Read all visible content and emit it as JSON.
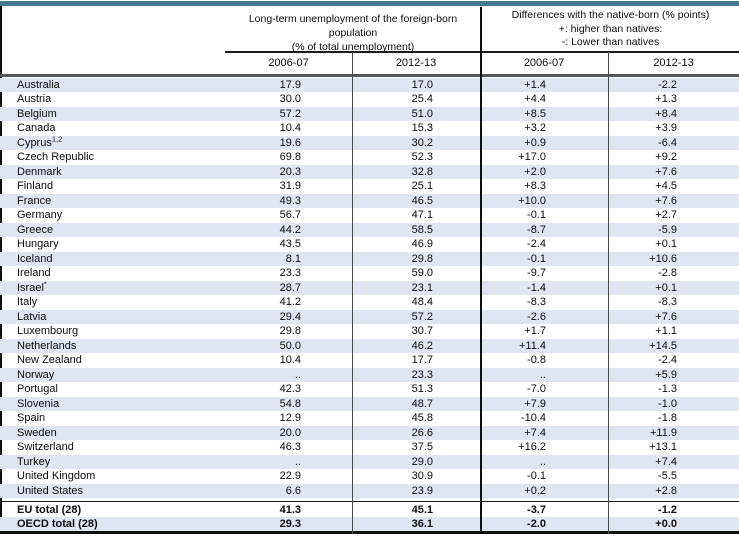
{
  "colors": {
    "accent_bar": "#44798e",
    "row_stripe": "#dfe5f1",
    "header_divider": "#55565a"
  },
  "table": {
    "group_headers": [
      {
        "lines": [
          "Long-term unemployment of the foreign-born population",
          "(% of total unemployment)"
        ]
      },
      {
        "lines": [
          "Differences with the native-born (% points)",
          "+: higher than natives:",
          "-: Lower than natives"
        ]
      }
    ],
    "column_headers": [
      "2006-07",
      "2012-13",
      "2006-07",
      "2012-13"
    ],
    "rows": [
      {
        "country": "Australia",
        "marker": "",
        "values": [
          "17.9",
          "17.0",
          "+1.4",
          "-2.2"
        ]
      },
      {
        "country": "Austria",
        "marker": "",
        "values": [
          "30.0",
          "25.4",
          "+4.4",
          "+1.3"
        ]
      },
      {
        "country": "Belgium",
        "marker": "",
        "values": [
          "57.2",
          "51.0",
          "+8.5",
          "+8.4"
        ]
      },
      {
        "country": "Canada",
        "marker": "",
        "values": [
          "10.4",
          "15.3",
          "+3.2",
          "+3.9"
        ]
      },
      {
        "country": "Cyprus",
        "marker": "1,2",
        "values": [
          "19.6",
          "30.2",
          "+0.9",
          "-6.4"
        ]
      },
      {
        "country": "Czech Republic",
        "marker": "",
        "values": [
          "69.8",
          "52.3",
          "+17.0",
          "+9.2"
        ]
      },
      {
        "country": "Denmark",
        "marker": "",
        "values": [
          "20.3",
          "32.8",
          "+2.0",
          "+7.6"
        ]
      },
      {
        "country": "Finland",
        "marker": "",
        "values": [
          "31.9",
          "25.1",
          "+8.3",
          "+4.5"
        ]
      },
      {
        "country": "France",
        "marker": "",
        "values": [
          "49.3",
          "46.5",
          "+10.0",
          "+7.6"
        ]
      },
      {
        "country": "Germany",
        "marker": "",
        "values": [
          "56.7",
          "47.1",
          "-0.1",
          "+2.7"
        ]
      },
      {
        "country": "Greece",
        "marker": "",
        "values": [
          "44.2",
          "58.5",
          "-8.7",
          "-5.9"
        ]
      },
      {
        "country": "Hungary",
        "marker": "",
        "values": [
          "43.5",
          "46.9",
          "-2.4",
          "+0.1"
        ]
      },
      {
        "country": "Iceland",
        "marker": "",
        "values": [
          "8.1",
          "29.8",
          "-0.1",
          "+10.6"
        ]
      },
      {
        "country": "Ireland",
        "marker": "",
        "values": [
          "23.3",
          "59.0",
          "-9.7",
          "-2.8"
        ]
      },
      {
        "country": "Israel",
        "marker": "*",
        "values": [
          "28.7",
          "23.1",
          "-1.4",
          "+0.1"
        ]
      },
      {
        "country": "Italy",
        "marker": "",
        "values": [
          "41.2",
          "48.4",
          "-8.3",
          "-8.3"
        ]
      },
      {
        "country": "Latvia",
        "marker": "",
        "values": [
          "29.4",
          "57.2",
          "-2.6",
          "+7.6"
        ]
      },
      {
        "country": "Luxembourg",
        "marker": "",
        "values": [
          "29.8",
          "30.7",
          "+1.7",
          "+1.1"
        ]
      },
      {
        "country": "Netherlands",
        "marker": "",
        "values": [
          "50.0",
          "46.2",
          "+11.4",
          "+14.5"
        ]
      },
      {
        "country": "New Zealand",
        "marker": "",
        "values": [
          "10.4",
          "17.7",
          "-0.8",
          "-2.4"
        ]
      },
      {
        "country": "Norway",
        "marker": "",
        "values": [
          "..",
          "23.3",
          "..",
          "+5.9"
        ]
      },
      {
        "country": "Portugal",
        "marker": "",
        "values": [
          "42.3",
          "51.3",
          "-7.0",
          "-1.3"
        ]
      },
      {
        "country": "Slovenia",
        "marker": "",
        "values": [
          "54.8",
          "48.7",
          "+7.9",
          "-1.0"
        ]
      },
      {
        "country": "Spain",
        "marker": "",
        "values": [
          "12.9",
          "45.8",
          "-10.4",
          "-1.8"
        ]
      },
      {
        "country": "Sweden",
        "marker": "",
        "values": [
          "20.0",
          "26.6",
          "+7.4",
          "+11.9"
        ]
      },
      {
        "country": "Switzerland",
        "marker": "",
        "values": [
          "46.3",
          "37.5",
          "+16.2",
          "+13.1"
        ]
      },
      {
        "country": "Turkey",
        "marker": "",
        "values": [
          "..",
          "29.0",
          "..",
          "+7.4"
        ]
      },
      {
        "country": "United Kingdom",
        "marker": "",
        "values": [
          "22.9",
          "30.9",
          "-0.1",
          "-5.5"
        ]
      },
      {
        "country": "United States",
        "marker": "",
        "values": [
          "6.6",
          "23.9",
          "+0.2",
          "+2.8"
        ]
      }
    ],
    "totals": [
      {
        "country": "EU total (28)",
        "marker": "",
        "values": [
          "41.3",
          "45.1",
          "-3.7",
          "-1.2"
        ]
      },
      {
        "country": "OECD total (28)",
        "marker": "",
        "values": [
          "29.3",
          "36.1",
          "-2.0",
          "+0.0"
        ]
      }
    ]
  }
}
